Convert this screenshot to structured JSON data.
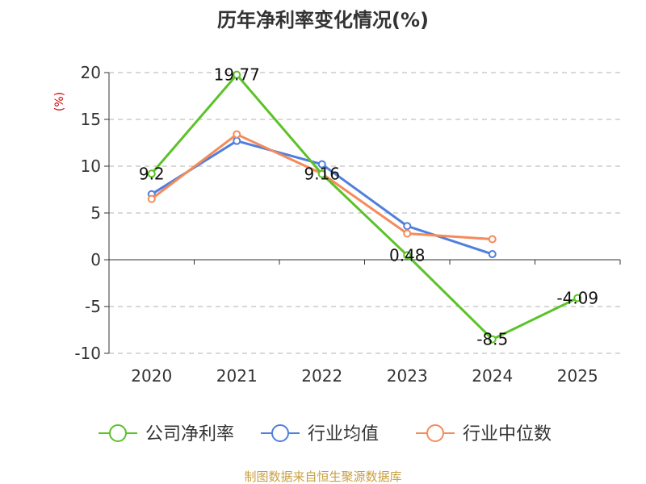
{
  "chart_data": {
    "type": "line",
    "title": "历年净利率变化情况(%)",
    "ylabel": "(%)",
    "categories": [
      "2020",
      "2021",
      "2022",
      "2023",
      "2024",
      "2025"
    ],
    "ylim": [
      -10,
      20
    ],
    "yticks": [
      20,
      15,
      10,
      5,
      0,
      -5,
      -10
    ],
    "grid": true,
    "legend_position": "bottom",
    "series": [
      {
        "name": "公司净利率",
        "color": "#5bc227",
        "values": [
          9.2,
          19.77,
          9.16,
          0.48,
          -8.5,
          -4.09
        ],
        "labels": [
          "9.2",
          "19.77",
          "9.16",
          "0.48",
          "-8.5",
          "-4.09"
        ]
      },
      {
        "name": "行业均值",
        "color": "#4f7fdc",
        "values": [
          7.0,
          12.7,
          10.2,
          3.6,
          0.6,
          null
        ]
      },
      {
        "name": "行业中位数",
        "color": "#f58a5a",
        "values": [
          6.5,
          13.4,
          9.2,
          2.8,
          2.2,
          null
        ]
      }
    ]
  },
  "source": "制图数据来自恒生聚源数据库"
}
